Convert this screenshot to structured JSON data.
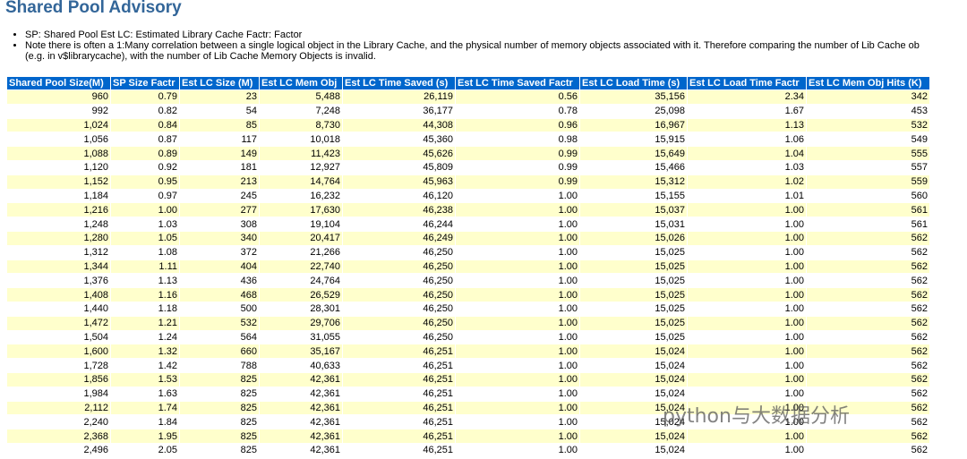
{
  "header": {
    "title": "Shared Pool Advisory"
  },
  "notes": [
    [
      "SP: Shared Pool Est LC: Estimated Library Cache Factr: Factor"
    ],
    [
      "Note there is often a 1:Many correlation between a single logical object in the Library Cache, and the physical number of memory objects associated with it. Therefore comparing the number of Lib Cache ob",
      "(e.g. in v$librarycache), with the number of Lib Cache Memory Objects is invalid."
    ]
  ],
  "table": {
    "columns": [
      "Shared Pool Size(M)",
      "SP Size Factr",
      "Est LC Size (M)",
      "Est LC Mem Obj",
      "Est LC Time Saved (s)",
      "Est LC Time Saved Factr",
      "Est LC Load Time (s)",
      "Est LC Load Time Factr",
      "Est LC Mem Obj Hits (K)"
    ],
    "rows": [
      [
        "960",
        "0.79",
        "23",
        "5,488",
        "26,119",
        "0.56",
        "35,156",
        "2.34",
        "342"
      ],
      [
        "992",
        "0.82",
        "54",
        "7,248",
        "36,177",
        "0.78",
        "25,098",
        "1.67",
        "453"
      ],
      [
        "1,024",
        "0.84",
        "85",
        "8,730",
        "44,308",
        "0.96",
        "16,967",
        "1.13",
        "532"
      ],
      [
        "1,056",
        "0.87",
        "117",
        "10,018",
        "45,360",
        "0.98",
        "15,915",
        "1.06",
        "549"
      ],
      [
        "1,088",
        "0.89",
        "149",
        "11,423",
        "45,626",
        "0.99",
        "15,649",
        "1.04",
        "555"
      ],
      [
        "1,120",
        "0.92",
        "181",
        "12,927",
        "45,809",
        "0.99",
        "15,466",
        "1.03",
        "557"
      ],
      [
        "1,152",
        "0.95",
        "213",
        "14,764",
        "45,963",
        "0.99",
        "15,312",
        "1.02",
        "559"
      ],
      [
        "1,184",
        "0.97",
        "245",
        "16,232",
        "46,120",
        "1.00",
        "15,155",
        "1.01",
        "560"
      ],
      [
        "1,216",
        "1.00",
        "277",
        "17,630",
        "46,238",
        "1.00",
        "15,037",
        "1.00",
        "561"
      ],
      [
        "1,248",
        "1.03",
        "308",
        "19,104",
        "46,244",
        "1.00",
        "15,031",
        "1.00",
        "561"
      ],
      [
        "1,280",
        "1.05",
        "340",
        "20,417",
        "46,249",
        "1.00",
        "15,026",
        "1.00",
        "562"
      ],
      [
        "1,312",
        "1.08",
        "372",
        "21,266",
        "46,250",
        "1.00",
        "15,025",
        "1.00",
        "562"
      ],
      [
        "1,344",
        "1.11",
        "404",
        "22,740",
        "46,250",
        "1.00",
        "15,025",
        "1.00",
        "562"
      ],
      [
        "1,376",
        "1.13",
        "436",
        "24,764",
        "46,250",
        "1.00",
        "15,025",
        "1.00",
        "562"
      ],
      [
        "1,408",
        "1.16",
        "468",
        "26,529",
        "46,250",
        "1.00",
        "15,025",
        "1.00",
        "562"
      ],
      [
        "1,440",
        "1.18",
        "500",
        "28,301",
        "46,250",
        "1.00",
        "15,025",
        "1.00",
        "562"
      ],
      [
        "1,472",
        "1.21",
        "532",
        "29,706",
        "46,250",
        "1.00",
        "15,025",
        "1.00",
        "562"
      ],
      [
        "1,504",
        "1.24",
        "564",
        "31,055",
        "46,250",
        "1.00",
        "15,025",
        "1.00",
        "562"
      ],
      [
        "1,600",
        "1.32",
        "660",
        "35,167",
        "46,251",
        "1.00",
        "15,024",
        "1.00",
        "562"
      ],
      [
        "1,728",
        "1.42",
        "788",
        "40,633",
        "46,251",
        "1.00",
        "15,024",
        "1.00",
        "562"
      ],
      [
        "1,856",
        "1.53",
        "825",
        "42,361",
        "46,251",
        "1.00",
        "15,024",
        "1.00",
        "562"
      ],
      [
        "1,984",
        "1.63",
        "825",
        "42,361",
        "46,251",
        "1.00",
        "15,024",
        "1.00",
        "562"
      ],
      [
        "2,112",
        "1.74",
        "825",
        "42,361",
        "46,251",
        "1.00",
        "15,024",
        "1.00",
        "562"
      ],
      [
        "2,240",
        "1.84",
        "825",
        "42,361",
        "46,251",
        "1.00",
        "15,024",
        "1.00",
        "562"
      ],
      [
        "2,368",
        "1.95",
        "825",
        "42,361",
        "46,251",
        "1.00",
        "15,024",
        "1.00",
        "562"
      ],
      [
        "2,496",
        "2.05",
        "825",
        "42,361",
        "46,251",
        "1.00",
        "15,024",
        "1.00",
        "562"
      ]
    ]
  },
  "watermark": "python与大数据分析"
}
